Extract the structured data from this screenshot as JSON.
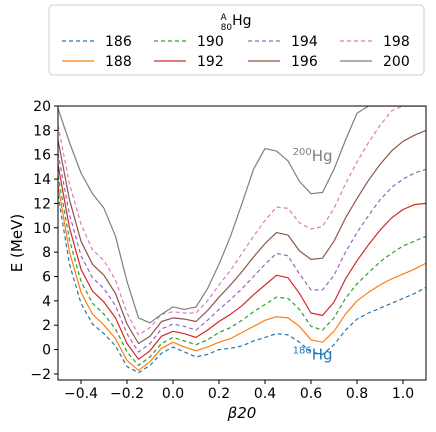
{
  "chart_data": {
    "type": "line",
    "title": "",
    "xlabel": "β20",
    "ylabel": "E (MeV)",
    "xlim": [
      -0.5,
      1.1
    ],
    "ylim": [
      -2.5,
      20
    ],
    "grid": false,
    "x_ticks": [
      -0.4,
      -0.2,
      0.0,
      0.2,
      0.4,
      0.6,
      0.8,
      1.0
    ],
    "x_tick_labels": [
      "−0.4",
      "−0.2",
      "0.0",
      "0.2",
      "0.4",
      "0.6",
      "0.8",
      "1.0"
    ],
    "y_ticks": [
      -2,
      0,
      2,
      4,
      6,
      8,
      10,
      12,
      14,
      16,
      18,
      20
    ],
    "y_tick_labels": [
      "−2",
      "0",
      "2",
      "4",
      "6",
      "8",
      "10",
      "12",
      "14",
      "16",
      "18",
      "20"
    ],
    "legend": {
      "title_sup": "A",
      "title_sub": "80",
      "title_main": "Hg",
      "placement": "top-center-above",
      "columns": 4
    },
    "annotations": [
      {
        "sup": "200",
        "text": "Hg",
        "x": 0.52,
        "y": 15.5,
        "color": "#7f7f7f"
      },
      {
        "sup": "186",
        "text": "Hg",
        "x": 0.52,
        "y": -0.8,
        "color": "#1f77b4"
      }
    ],
    "x": [
      -0.5,
      -0.45,
      -0.4,
      -0.35,
      -0.3,
      -0.25,
      -0.2,
      -0.15,
      -0.1,
      -0.05,
      0.0,
      0.05,
      0.1,
      0.15,
      0.2,
      0.25,
      0.3,
      0.35,
      0.4,
      0.45,
      0.5,
      0.55,
      0.6,
      0.65,
      0.7,
      0.75,
      0.8,
      0.85,
      0.9,
      0.95,
      1.0,
      1.05,
      1.1
    ],
    "series": [
      {
        "name": "186",
        "color": "#1f77b4",
        "dash": "4,3",
        "values": [
          12.7,
          7.0,
          3.8,
          2.1,
          1.3,
          0.3,
          -1.4,
          -1.9,
          -1.3,
          -0.3,
          0.2,
          -0.2,
          -0.6,
          -0.4,
          0.0,
          0.1,
          0.3,
          0.7,
          1.0,
          1.3,
          1.2,
          0.6,
          -0.2,
          -0.4,
          0.4,
          1.6,
          2.5,
          3.0,
          3.4,
          3.8,
          4.2,
          4.6,
          5.1
        ]
      },
      {
        "name": "188",
        "color": "#ff7f0e",
        "dash": "",
        "values": [
          13.5,
          8.0,
          4.7,
          2.9,
          2.0,
          0.9,
          -0.9,
          -1.7,
          -1.0,
          0.1,
          0.6,
          0.2,
          -0.1,
          0.2,
          0.6,
          0.9,
          1.4,
          1.9,
          2.4,
          2.7,
          2.6,
          1.9,
          0.8,
          0.6,
          1.5,
          2.9,
          4.0,
          4.7,
          5.3,
          5.8,
          6.2,
          6.6,
          7.1
        ]
      },
      {
        "name": "190",
        "color": "#2ca02c",
        "dash": "4,3",
        "values": [
          14.3,
          9.0,
          5.6,
          3.8,
          2.9,
          1.7,
          -0.2,
          -1.3,
          -0.6,
          0.5,
          1.0,
          0.7,
          0.4,
          0.8,
          1.4,
          1.8,
          2.4,
          3.1,
          3.7,
          4.3,
          4.2,
          3.3,
          1.9,
          1.6,
          2.6,
          4.2,
          5.4,
          6.3,
          7.2,
          7.9,
          8.5,
          8.9,
          9.3
        ]
      },
      {
        "name": "192",
        "color": "#d62728",
        "dash": "",
        "values": [
          15.2,
          10.0,
          6.6,
          4.8,
          3.9,
          2.6,
          0.5,
          -0.8,
          -0.1,
          1.1,
          1.5,
          1.3,
          1.0,
          1.6,
          2.3,
          2.9,
          3.6,
          4.5,
          5.3,
          6.1,
          5.9,
          4.6,
          3.0,
          2.8,
          3.9,
          5.8,
          7.3,
          8.6,
          9.8,
          10.8,
          11.5,
          11.9,
          12.0
        ]
      },
      {
        "name": "194",
        "color": "#9467bd",
        "dash": "4,3",
        "values": [
          16.1,
          11.1,
          7.7,
          5.9,
          5.0,
          3.6,
          1.3,
          -0.2,
          0.5,
          1.7,
          2.1,
          1.9,
          1.6,
          2.4,
          3.3,
          4.1,
          5.0,
          6.0,
          7.0,
          7.9,
          7.7,
          6.2,
          4.9,
          4.9,
          6.1,
          8.0,
          9.6,
          11.0,
          12.3,
          13.3,
          14.0,
          14.5,
          14.8
        ]
      },
      {
        "name": "196",
        "color": "#8c564b",
        "dash": "",
        "values": [
          17.2,
          12.3,
          8.9,
          7.0,
          6.1,
          4.6,
          2.1,
          0.5,
          1.1,
          2.3,
          2.6,
          2.5,
          2.3,
          3.2,
          4.3,
          5.3,
          6.4,
          7.6,
          8.7,
          9.6,
          9.4,
          8.1,
          7.4,
          7.5,
          8.9,
          10.8,
          12.4,
          13.9,
          15.2,
          16.3,
          17.1,
          17.6,
          18.0
        ]
      },
      {
        "name": "198",
        "color": "#e377c2",
        "dash": "4,3",
        "values": [
          18.4,
          13.6,
          10.3,
          8.2,
          7.3,
          5.7,
          3.0,
          1.2,
          1.8,
          2.9,
          3.1,
          3.0,
          3.0,
          4.0,
          5.3,
          6.5,
          7.9,
          9.3,
          10.6,
          11.7,
          11.6,
          10.4,
          9.9,
          10.1,
          11.6,
          13.6,
          15.4,
          17.0,
          18.4,
          19.6,
          20.0,
          20.0,
          20.0
        ]
      },
      {
        "name": "200",
        "color": "#7f7f7f",
        "dash": "",
        "values": [
          19.8,
          17.0,
          14.5,
          12.8,
          11.6,
          9.3,
          5.6,
          2.6,
          2.2,
          2.9,
          3.5,
          3.3,
          3.5,
          5.0,
          7.0,
          9.3,
          12.0,
          14.8,
          16.5,
          16.3,
          15.5,
          13.8,
          12.8,
          12.9,
          14.8,
          17.2,
          19.4,
          20.0,
          20.0,
          20.0,
          20.0,
          20.0,
          20.0
        ]
      }
    ]
  }
}
